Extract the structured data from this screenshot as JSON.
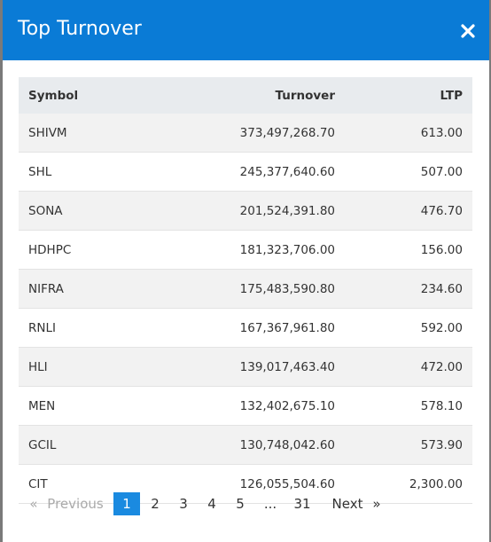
{
  "header": {
    "title": "Top Turnover",
    "close": "×"
  },
  "table": {
    "columns": [
      "Symbol",
      "Turnover",
      "LTP"
    ],
    "rows": [
      [
        "SHIVM",
        "373,497,268.70",
        "613.00"
      ],
      [
        "SHL",
        "245,377,640.60",
        "507.00"
      ],
      [
        "SONA",
        "201,524,391.80",
        "476.70"
      ],
      [
        "HDHPC",
        "181,323,706.00",
        "156.00"
      ],
      [
        "NIFRA",
        "175,483,590.80",
        "234.60"
      ],
      [
        "RNLI",
        "167,367,961.80",
        "592.00"
      ],
      [
        "HLI",
        "139,017,463.40",
        "472.00"
      ],
      [
        "MEN",
        "132,402,675.10",
        "578.10"
      ],
      [
        "GCIL",
        "130,748,042.60",
        "573.90"
      ],
      [
        "CIT",
        "126,055,504.60",
        "2,300.00"
      ]
    ]
  },
  "pagination": {
    "first": "«",
    "previous": "Previous",
    "pages": [
      "1",
      "2",
      "3",
      "4",
      "5",
      "...",
      "31"
    ],
    "next": "Next",
    "last": "»"
  }
}
